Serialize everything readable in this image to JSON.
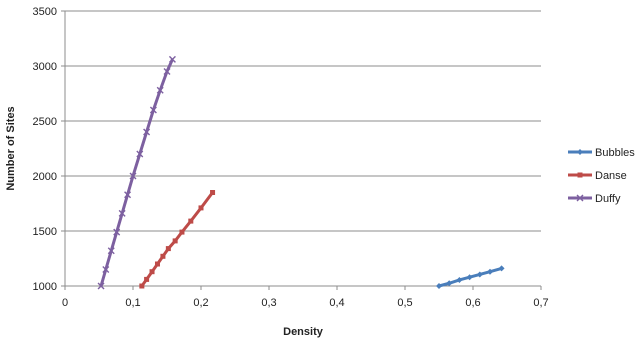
{
  "chart_data": {
    "type": "scatter",
    "title": "",
    "xlabel": "Density",
    "ylabel": "Number of Sites",
    "xlim": [
      0,
      0.7
    ],
    "ylim": [
      1000,
      3500
    ],
    "x_ticks": [
      "0",
      "0,1",
      "0,2",
      "0,3",
      "0,4",
      "0,5",
      "0,6",
      "0,7"
    ],
    "x_tick_values": [
      0,
      0.1,
      0.2,
      0.3,
      0.4,
      0.5,
      0.6,
      0.7
    ],
    "y_ticks": [
      "1000",
      "1500",
      "2000",
      "2500",
      "3000",
      "3500"
    ],
    "y_tick_values": [
      1000,
      1500,
      2000,
      2500,
      3000,
      3500
    ],
    "grid": "horizontal",
    "legend_position": "right",
    "series": [
      {
        "name": "Bubbles",
        "color": "#4a7ebb",
        "marker": "diamond",
        "x": [
          0.55,
          0.565,
          0.58,
          0.595,
          0.61,
          0.625,
          0.642
        ],
        "y": [
          1000,
          1025,
          1055,
          1080,
          1105,
          1130,
          1160
        ]
      },
      {
        "name": "Danse",
        "color": "#be4b48",
        "marker": "square",
        "x": [
          0.113,
          0.12,
          0.128,
          0.136,
          0.144,
          0.152,
          0.162,
          0.172,
          0.185,
          0.2,
          0.217
        ],
        "y": [
          1000,
          1060,
          1130,
          1200,
          1270,
          1340,
          1410,
          1490,
          1590,
          1710,
          1850
        ]
      },
      {
        "name": "Duffy",
        "color": "#7d60a0",
        "marker": "x",
        "x": [
          0.053,
          0.06,
          0.068,
          0.076,
          0.084,
          0.092,
          0.1,
          0.11,
          0.12,
          0.13,
          0.14,
          0.15,
          0.158
        ],
        "y": [
          1000,
          1150,
          1320,
          1490,
          1660,
          1830,
          2000,
          2200,
          2400,
          2600,
          2780,
          2950,
          3060
        ]
      }
    ]
  }
}
